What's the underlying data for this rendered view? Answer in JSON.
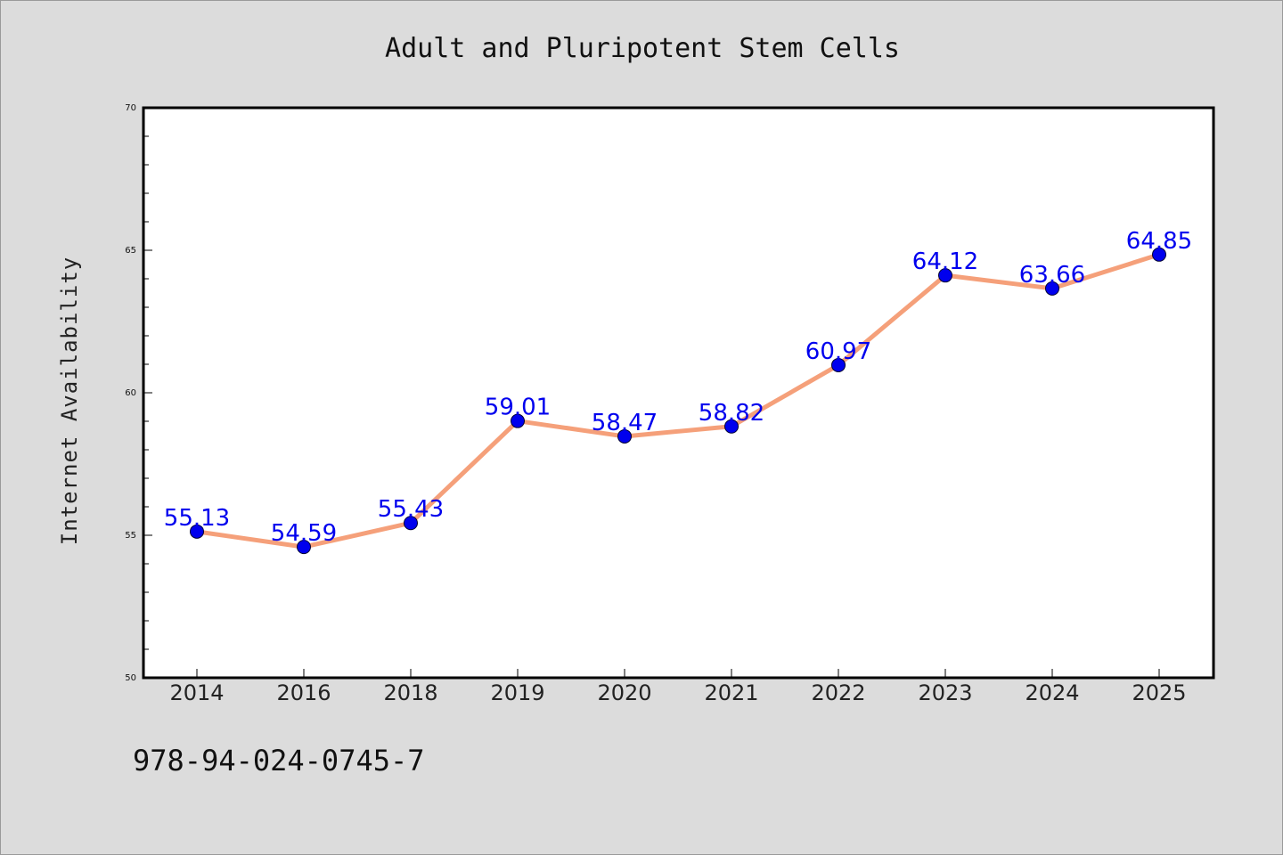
{
  "chart_data": {
    "type": "line",
    "title": "Adult and Pluripotent Stem Cells",
    "xlabel": "",
    "ylabel": "Internet Availability",
    "categories": [
      "2014",
      "2016",
      "2018",
      "2019",
      "2020",
      "2021",
      "2022",
      "2023",
      "2024",
      "2025"
    ],
    "series": [
      {
        "values": [
          55.13,
          54.59,
          55.43,
          59.01,
          58.47,
          58.82,
          60.97,
          64.12,
          63.66,
          64.85
        ],
        "data_labels": [
          "55.13",
          "54.59",
          "55.43",
          "59.01",
          "58.47",
          "58.82",
          "60.97",
          "64.12",
          "63.66",
          "64.85"
        ]
      }
    ],
    "ylim": [
      50,
      70
    ],
    "yticks": [
      "50",
      "55",
      "60",
      "65",
      "70"
    ],
    "grid": false,
    "legend": "none",
    "colors": {
      "line": "#f5a07a",
      "marker": "#0000ee",
      "data_label": "#0000ee",
      "plot_background": "#ffffff",
      "page_background": "#dcdcdc"
    }
  },
  "footer": {
    "isbn": "978-94-024-0745-7"
  }
}
